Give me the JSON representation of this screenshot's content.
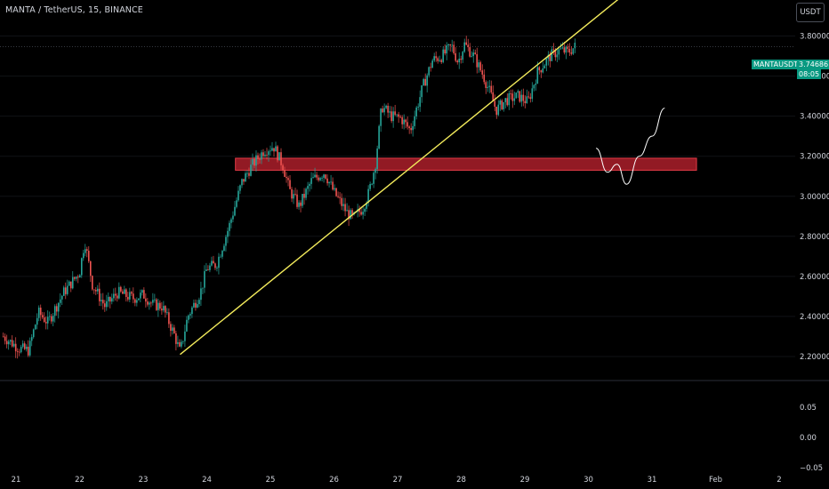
{
  "header": {
    "title": "MANTA / TetherUS, 15, BINANCE",
    "currency_button": "USDT"
  },
  "price_tag": {
    "symbol": "MANTAUSDT",
    "price": "3.74686",
    "countdown": "08:05",
    "color": "#089981"
  },
  "colors": {
    "up": "#26a69a",
    "down": "#ef5350",
    "trendline": "#f2ea5b",
    "zone_fill": "#b2202c",
    "zone_border": "#e03a45",
    "projection": "#ffffff",
    "background": "#000000"
  },
  "chart_data": [
    {
      "type": "candlestick",
      "title": "MANTA / TetherUS, 15, BINANCE",
      "x_ticks": [
        "21",
        "22",
        "23",
        "24",
        "25",
        "26",
        "27",
        "28",
        "29",
        "30",
        "31",
        "Feb",
        "2"
      ],
      "y_ticks": [
        "2.20000",
        "2.40000",
        "2.60000",
        "2.80000",
        "3.00000",
        "3.20000",
        "3.40000",
        "3.60000",
        "3.80000"
      ],
      "ylim": [
        2.08,
        3.98
      ],
      "last_price": 3.74686,
      "close_path": [
        {
          "t": 20.8,
          "p": 2.3
        },
        {
          "t": 21.05,
          "p": 2.24
        },
        {
          "t": 21.2,
          "p": 2.23
        },
        {
          "t": 21.35,
          "p": 2.42
        },
        {
          "t": 21.5,
          "p": 2.37
        },
        {
          "t": 21.75,
          "p": 2.52
        },
        {
          "t": 22.0,
          "p": 2.62
        },
        {
          "t": 22.08,
          "p": 2.78
        },
        {
          "t": 22.2,
          "p": 2.56
        },
        {
          "t": 22.4,
          "p": 2.45
        },
        {
          "t": 22.6,
          "p": 2.52
        },
        {
          "t": 22.85,
          "p": 2.49
        },
        {
          "t": 23.0,
          "p": 2.51
        },
        {
          "t": 23.15,
          "p": 2.46
        },
        {
          "t": 23.3,
          "p": 2.45
        },
        {
          "t": 23.5,
          "p": 2.3
        },
        {
          "t": 23.58,
          "p": 2.22
        },
        {
          "t": 23.7,
          "p": 2.4
        },
        {
          "t": 23.9,
          "p": 2.52
        },
        {
          "t": 24.0,
          "p": 2.64
        },
        {
          "t": 24.15,
          "p": 2.66
        },
        {
          "t": 24.35,
          "p": 2.85
        },
        {
          "t": 24.55,
          "p": 3.07
        },
        {
          "t": 24.7,
          "p": 3.15
        },
        {
          "t": 24.9,
          "p": 3.23
        },
        {
          "t": 25.05,
          "p": 3.25
        },
        {
          "t": 25.2,
          "p": 3.15
        },
        {
          "t": 25.3,
          "p": 3.03
        },
        {
          "t": 25.45,
          "p": 2.95
        },
        {
          "t": 25.65,
          "p": 3.08
        },
        {
          "t": 25.85,
          "p": 3.12
        },
        {
          "t": 26.0,
          "p": 3.02
        },
        {
          "t": 26.2,
          "p": 2.92
        },
        {
          "t": 26.3,
          "p": 2.89
        },
        {
          "t": 26.45,
          "p": 2.94
        },
        {
          "t": 26.55,
          "p": 3.02
        },
        {
          "t": 26.65,
          "p": 3.16
        },
        {
          "t": 26.75,
          "p": 3.45
        },
        {
          "t": 26.9,
          "p": 3.4
        },
        {
          "t": 27.05,
          "p": 3.39
        },
        {
          "t": 27.2,
          "p": 3.33
        },
        {
          "t": 27.4,
          "p": 3.55
        },
        {
          "t": 27.55,
          "p": 3.68
        },
        {
          "t": 27.7,
          "p": 3.7
        },
        {
          "t": 27.85,
          "p": 3.75
        },
        {
          "t": 27.95,
          "p": 3.67
        },
        {
          "t": 28.05,
          "p": 3.76
        },
        {
          "t": 28.2,
          "p": 3.7
        },
        {
          "t": 28.35,
          "p": 3.6
        },
        {
          "t": 28.45,
          "p": 3.52
        },
        {
          "t": 28.55,
          "p": 3.43
        },
        {
          "t": 28.7,
          "p": 3.48
        },
        {
          "t": 28.9,
          "p": 3.5
        },
        {
          "t": 29.05,
          "p": 3.47
        },
        {
          "t": 29.2,
          "p": 3.62
        },
        {
          "t": 29.4,
          "p": 3.7
        },
        {
          "t": 29.55,
          "p": 3.73
        },
        {
          "t": 29.68,
          "p": 3.72
        },
        {
          "t": 29.8,
          "p": 3.75
        }
      ],
      "trendline": {
        "start": {
          "t": 23.58,
          "p": 2.21
        },
        "end": {
          "t": 31.0,
          "p": 4.12
        }
      },
      "zone": {
        "from_t": 24.45,
        "to_t": 31.7,
        "low": 3.13,
        "high": 3.19
      },
      "projection_path": [
        {
          "t": 30.12,
          "p": 3.24
        },
        {
          "t": 30.3,
          "p": 3.12
        },
        {
          "t": 30.45,
          "p": 3.16
        },
        {
          "t": 30.6,
          "p": 3.06
        },
        {
          "t": 30.8,
          "p": 3.2
        },
        {
          "t": 31.0,
          "p": 3.3
        },
        {
          "t": 31.2,
          "p": 3.44
        }
      ]
    },
    {
      "type": "line",
      "x_ticks": [
        "21",
        "22",
        "23",
        "24",
        "25",
        "26",
        "27",
        "28",
        "29",
        "30",
        "31",
        "Feb",
        "2"
      ],
      "y_ticks": [
        "0.05",
        "0.00",
        "−0.05"
      ],
      "ylim": [
        -0.05,
        0.12
      ]
    }
  ]
}
